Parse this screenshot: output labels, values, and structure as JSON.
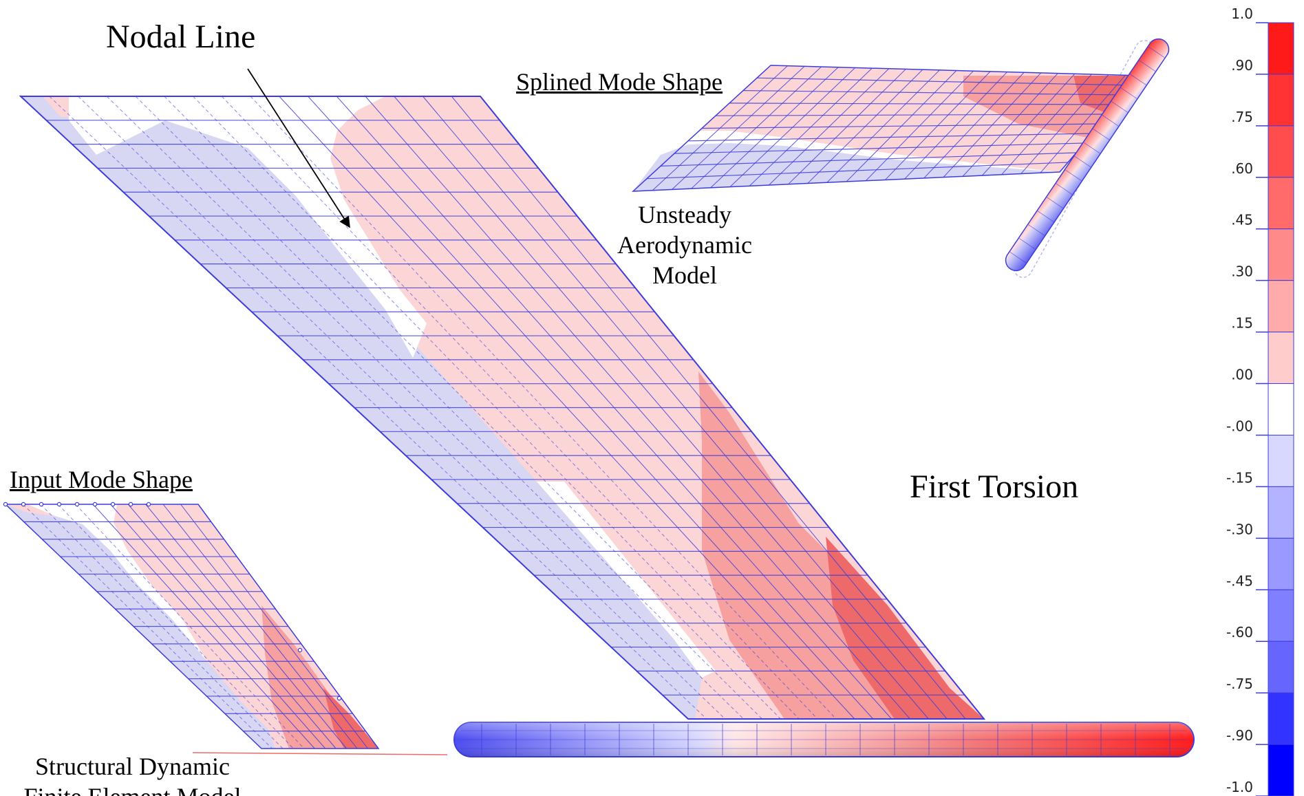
{
  "labels": {
    "nodal_line": "Nodal Line",
    "splined_mode_shape": "Splined Mode Shape",
    "unsteady_aero_model": [
      "Unsteady",
      "Aerodynamic",
      "Model"
    ],
    "input_mode_shape": "Input Mode Shape",
    "structural_model": [
      "Structural Dynamic",
      "Finite Element Model"
    ],
    "first_torsion": "First Torsion"
  },
  "color_scale": {
    "ticks": [
      "1.0",
      ".90",
      ".75",
      ".60",
      ".45",
      ".30",
      ".15",
      ".00",
      "-.00",
      "-.15",
      "-.30",
      "-.45",
      "-.60",
      "-.75",
      "-.90",
      "-1.0"
    ],
    "bands": [
      "#ff1a1a",
      "#ff3333",
      "#ff4d4d",
      "#ff6b6b",
      "#ff8a8a",
      "#ffabab",
      "#ffcccc",
      "#ffffff",
      "#d8d8ff",
      "#b3b3ff",
      "#9999ff",
      "#7f7fff",
      "#6666ff",
      "#3333ff",
      "#0000ff"
    ]
  },
  "colors": {
    "mesh": "#3c3cdc",
    "positive_light": "#fcd6d6",
    "positive_mid": "#f6a0a0",
    "positive_strong": "#ee6a6a",
    "negative_light": "#d7d7f4",
    "negative_mid": "#8080ee"
  }
}
